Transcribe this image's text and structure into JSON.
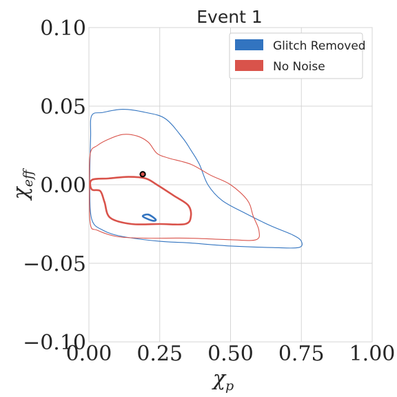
{
  "chart_data": {
    "type": "contour",
    "title": "Event 1",
    "xlabel_main": "χ",
    "xlabel_sub": "p",
    "ylabel_main": "χ",
    "ylabel_sub": "eff",
    "xlim": [
      0.0,
      1.0
    ],
    "ylim": [
      -0.1,
      0.1
    ],
    "x_ticks": [
      0.0,
      0.25,
      0.5,
      0.75,
      1.0
    ],
    "x_tick_labels": [
      "0.00",
      "0.25",
      "0.50",
      "0.75",
      "1.00"
    ],
    "y_ticks": [
      -0.1,
      -0.05,
      0.0,
      0.05,
      0.1
    ],
    "y_tick_labels": [
      "−0.10",
      "−0.05",
      "0.00",
      "0.05",
      "0.10"
    ],
    "grid": true,
    "legend_position": "top-right",
    "series": [
      {
        "name": "Glitch Removed",
        "color": "#3274c0",
        "contours": [
          {
            "level": "outer",
            "points": [
              [
                0.01,
                0.044
              ],
              [
                0.05,
                0.046
              ],
              [
                0.12,
                0.048
              ],
              [
                0.2,
                0.046
              ],
              [
                0.27,
                0.042
              ],
              [
                0.33,
                0.03
              ],
              [
                0.36,
                0.022
              ],
              [
                0.39,
                0.013
              ],
              [
                0.42,
                0.0
              ],
              [
                0.47,
                -0.01
              ],
              [
                0.55,
                -0.018
              ],
              [
                0.64,
                -0.026
              ],
              [
                0.72,
                -0.032
              ],
              [
                0.75,
                -0.036
              ],
              [
                0.74,
                -0.04
              ],
              [
                0.65,
                -0.04
              ],
              [
                0.5,
                -0.039
              ],
              [
                0.35,
                -0.037
              ],
              [
                0.25,
                -0.036
              ],
              [
                0.12,
                -0.033
              ],
              [
                0.05,
                -0.029
              ],
              [
                0.01,
                -0.022
              ],
              [
                0.003,
                0.0
              ],
              [
                0.006,
                0.03
              ],
              [
                0.01,
                0.044
              ]
            ]
          },
          {
            "level": "inner",
            "points": [
              [
                0.19,
                -0.02
              ],
              [
                0.21,
                -0.019
              ],
              [
                0.235,
                -0.022
              ],
              [
                0.23,
                -0.023
              ],
              [
                0.21,
                -0.022
              ],
              [
                0.19,
                -0.02
              ]
            ]
          }
        ]
      },
      {
        "name": "No Noise",
        "color": "#d9534b",
        "contours": [
          {
            "level": "outer",
            "points": [
              [
                0.005,
                0.02
              ],
              [
                0.03,
                0.025
              ],
              [
                0.07,
                0.029
              ],
              [
                0.12,
                0.032
              ],
              [
                0.17,
                0.031
              ],
              [
                0.21,
                0.027
              ],
              [
                0.24,
                0.02
              ],
              [
                0.28,
                0.017
              ],
              [
                0.36,
                0.013
              ],
              [
                0.43,
                0.006
              ],
              [
                0.5,
                0.0
              ],
              [
                0.56,
                -0.01
              ],
              [
                0.58,
                -0.02
              ],
              [
                0.6,
                -0.029
              ],
              [
                0.59,
                -0.035
              ],
              [
                0.5,
                -0.035
              ],
              [
                0.35,
                -0.034
              ],
              [
                0.2,
                -0.034
              ],
              [
                0.1,
                -0.033
              ],
              [
                0.03,
                -0.029
              ],
              [
                0.005,
                -0.025
              ],
              [
                0.002,
                0.0
              ],
              [
                0.005,
                0.02
              ]
            ]
          },
          {
            "level": "inner",
            "points": [
              [
                0.01,
                0.003
              ],
              [
                0.07,
                0.004
              ],
              [
                0.14,
                0.005
              ],
              [
                0.2,
                0.004
              ],
              [
                0.24,
                0.0
              ],
              [
                0.3,
                -0.007
              ],
              [
                0.35,
                -0.013
              ],
              [
                0.36,
                -0.02
              ],
              [
                0.34,
                -0.025
              ],
              [
                0.25,
                -0.025
              ],
              [
                0.15,
                -0.025
              ],
              [
                0.075,
                -0.021
              ],
              [
                0.055,
                -0.011
              ],
              [
                0.04,
                -0.004
              ],
              [
                0.01,
                -0.003
              ],
              [
                0.01,
                0.003
              ]
            ]
          }
        ]
      }
    ],
    "marker": {
      "x": 0.19,
      "y": 0.0067,
      "fill": "#d9534b",
      "edge": "#000000"
    }
  }
}
